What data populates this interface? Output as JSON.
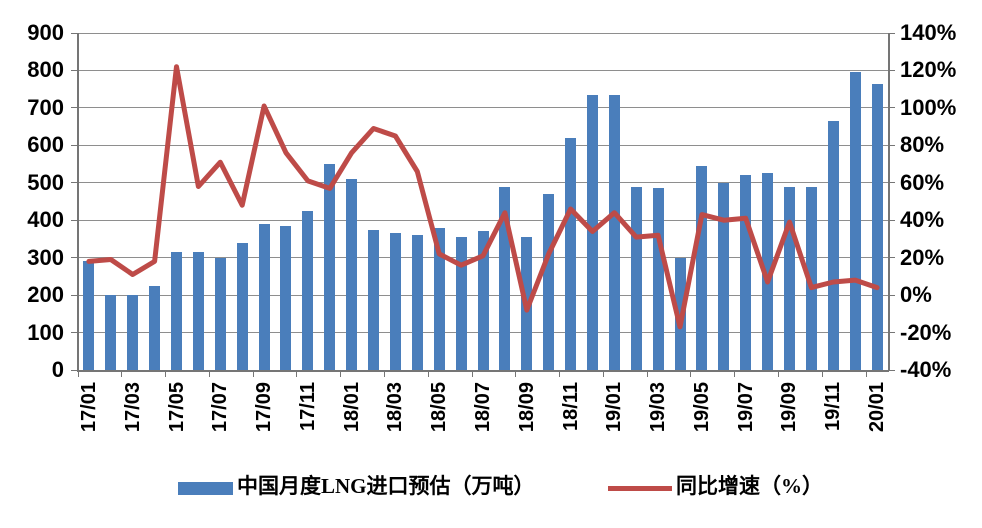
{
  "chart_data": {
    "type": "bar+line combo",
    "categories": [
      "17/01",
      "17/02",
      "17/03",
      "17/04",
      "17/05",
      "17/06",
      "17/07",
      "17/08",
      "17/09",
      "17/10",
      "17/11",
      "17/12",
      "18/01",
      "18/02",
      "18/03",
      "18/04",
      "18/05",
      "18/06",
      "18/07",
      "18/08",
      "18/09",
      "18/10",
      "18/11",
      "18/12",
      "19/01",
      "19/02",
      "19/03",
      "19/04",
      "19/05",
      "19/06",
      "19/07",
      "19/08",
      "19/09",
      "19/10",
      "19/11",
      "19/12",
      "20/01"
    ],
    "x_tick_labels": [
      "17/01",
      "17/03",
      "17/05",
      "17/07",
      "17/09",
      "17/11",
      "18/01",
      "18/03",
      "18/05",
      "18/07",
      "18/09",
      "18/11",
      "19/01",
      "19/03",
      "19/05",
      "19/07",
      "19/09",
      "19/11",
      "20/01"
    ],
    "series": [
      {
        "name": "中国月度LNG进口预估（万吨）",
        "type": "bar",
        "axis": "left",
        "color": "#4A7EBB",
        "values": [
          290,
          200,
          200,
          225,
          315,
          315,
          300,
          340,
          390,
          385,
          425,
          550,
          510,
          375,
          365,
          360,
          380,
          355,
          370,
          490,
          355,
          470,
          620,
          735,
          735,
          490,
          485,
          300,
          545,
          500,
          520,
          525,
          490,
          488,
          665,
          795,
          765
        ]
      },
      {
        "name": "同比增速（%）",
        "type": "line",
        "axis": "right",
        "color": "#BE4B48",
        "values": [
          18,
          19,
          11,
          18,
          122,
          58,
          71,
          48,
          101,
          76,
          61,
          57,
          76,
          89,
          85,
          66,
          22,
          16,
          21,
          44,
          -8,
          22,
          46,
          34,
          44,
          31,
          32,
          -17,
          43,
          40,
          41,
          7,
          39,
          4,
          7,
          8,
          4
        ]
      }
    ],
    "left_axis": {
      "min": 0,
      "max": 900,
      "step": 100,
      "tick_labels": [
        "900",
        "800",
        "700",
        "600",
        "500",
        "400",
        "300",
        "200",
        "100",
        "0"
      ]
    },
    "right_axis": {
      "min": -40,
      "max": 140,
      "step": 20,
      "tick_labels": [
        "140%",
        "120%",
        "100%",
        "80%",
        "60%",
        "40%",
        "20%",
        "0%",
        "-20%",
        "-40%"
      ]
    },
    "grid": true,
    "legend_position": "bottom"
  },
  "colors": {
    "bar": "#4A7EBB",
    "line": "#BE4B48",
    "gridline": "#8e8e8e",
    "axis": "#757575",
    "text": "#000000",
    "background": "#ffffff"
  }
}
